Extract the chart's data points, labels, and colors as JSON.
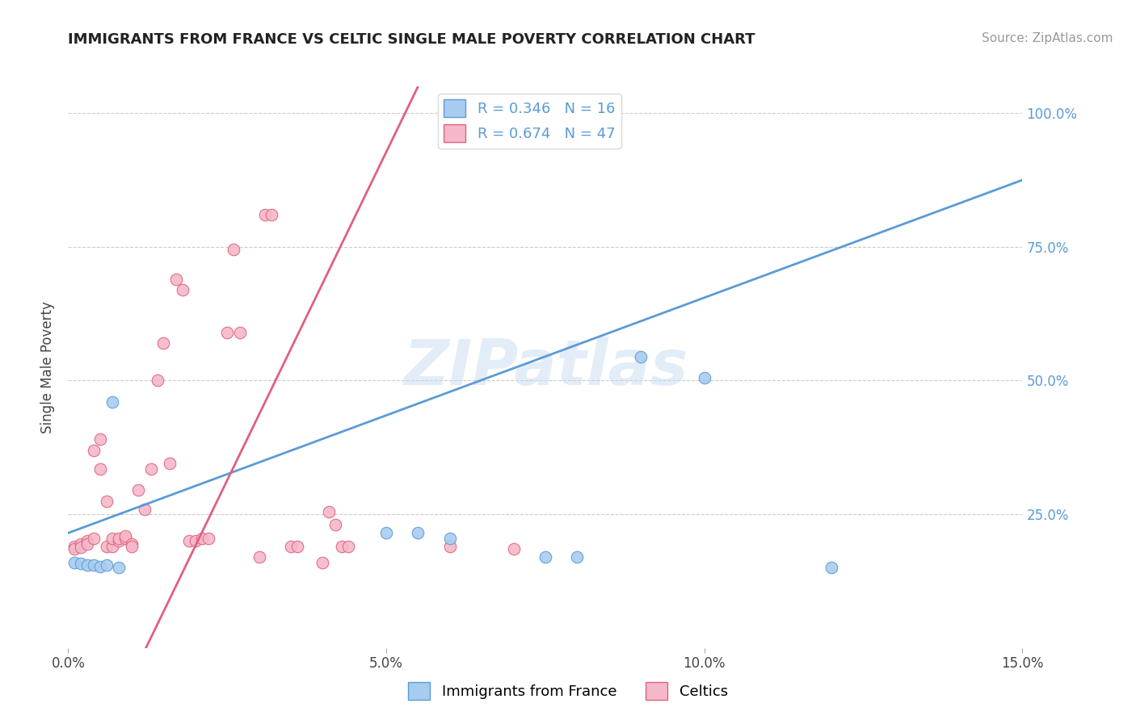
{
  "title": "IMMIGRANTS FROM FRANCE VS CELTIC SINGLE MALE POVERTY CORRELATION CHART",
  "source": "Source: ZipAtlas.com",
  "ylabel": "Single Male Poverty",
  "xlim": [
    0.0,
    0.15
  ],
  "ylim": [
    0.0,
    1.05
  ],
  "xticks": [
    0.0,
    0.05,
    0.1,
    0.15
  ],
  "xtick_labels": [
    "0.0%",
    "5.0%",
    "10.0%",
    "15.0%"
  ],
  "yticks": [
    0.25,
    0.5,
    0.75,
    1.0
  ],
  "ytick_labels": [
    "25.0%",
    "50.0%",
    "75.0%",
    "100.0%"
  ],
  "france_R": 0.346,
  "france_N": 16,
  "celtics_R": 0.674,
  "celtics_N": 47,
  "france_color": "#A8CCF0",
  "celtics_color": "#F5B8C8",
  "france_line_color": "#5B9BD5",
  "celtics_line_color": "#E06080",
  "watermark": "ZIPatlas",
  "france_line": [
    [
      0.0,
      0.215
    ],
    [
      0.15,
      0.875
    ]
  ],
  "celtics_line": [
    [
      0.0,
      -0.3
    ],
    [
      0.055,
      1.05
    ]
  ],
  "france_points": [
    [
      0.001,
      0.16
    ],
    [
      0.002,
      0.158
    ],
    [
      0.003,
      0.155
    ],
    [
      0.004,
      0.155
    ],
    [
      0.005,
      0.152
    ],
    [
      0.006,
      0.155
    ],
    [
      0.007,
      0.46
    ],
    [
      0.008,
      0.15
    ],
    [
      0.05,
      0.215
    ],
    [
      0.055,
      0.215
    ],
    [
      0.06,
      0.205
    ],
    [
      0.075,
      0.17
    ],
    [
      0.08,
      0.17
    ],
    [
      0.09,
      0.545
    ],
    [
      0.1,
      0.505
    ],
    [
      0.12,
      0.15
    ]
  ],
  "celtics_points": [
    [
      0.001,
      0.19
    ],
    [
      0.001,
      0.185
    ],
    [
      0.002,
      0.195
    ],
    [
      0.002,
      0.188
    ],
    [
      0.003,
      0.2
    ],
    [
      0.003,
      0.195
    ],
    [
      0.004,
      0.205
    ],
    [
      0.004,
      0.37
    ],
    [
      0.005,
      0.39
    ],
    [
      0.005,
      0.335
    ],
    [
      0.006,
      0.275
    ],
    [
      0.006,
      0.19
    ],
    [
      0.007,
      0.19
    ],
    [
      0.007,
      0.205
    ],
    [
      0.008,
      0.2
    ],
    [
      0.008,
      0.205
    ],
    [
      0.009,
      0.205
    ],
    [
      0.009,
      0.21
    ],
    [
      0.01,
      0.195
    ],
    [
      0.01,
      0.19
    ],
    [
      0.011,
      0.295
    ],
    [
      0.012,
      0.26
    ],
    [
      0.013,
      0.335
    ],
    [
      0.014,
      0.5
    ],
    [
      0.015,
      0.57
    ],
    [
      0.016,
      0.345
    ],
    [
      0.017,
      0.69
    ],
    [
      0.018,
      0.67
    ],
    [
      0.019,
      0.2
    ],
    [
      0.02,
      0.2
    ],
    [
      0.021,
      0.205
    ],
    [
      0.022,
      0.205
    ],
    [
      0.025,
      0.59
    ],
    [
      0.026,
      0.745
    ],
    [
      0.027,
      0.59
    ],
    [
      0.03,
      0.17
    ],
    [
      0.031,
      0.81
    ],
    [
      0.032,
      0.81
    ],
    [
      0.035,
      0.19
    ],
    [
      0.036,
      0.19
    ],
    [
      0.04,
      0.16
    ],
    [
      0.041,
      0.255
    ],
    [
      0.042,
      0.23
    ],
    [
      0.043,
      0.19
    ],
    [
      0.044,
      0.19
    ],
    [
      0.06,
      0.19
    ],
    [
      0.07,
      0.185
    ]
  ]
}
